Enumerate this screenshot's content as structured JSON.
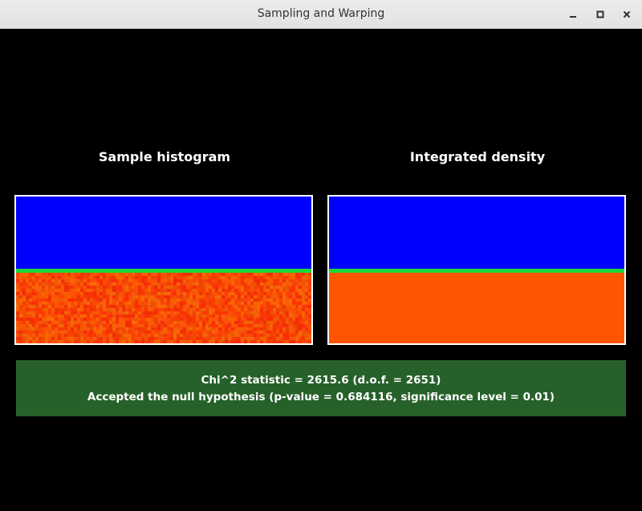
{
  "window": {
    "title": "Sampling and Warping",
    "controls": {
      "minimize_icon": "minimize-icon",
      "maximize_icon": "maximize-icon",
      "close_icon": "close-icon"
    }
  },
  "panels": {
    "left_title": "Sample histogram",
    "right_title": "Integrated density"
  },
  "colors": {
    "low_density": "#0000ff",
    "boundary": "#19d93a",
    "high_density": "#ff5500",
    "result_background": "#27612a"
  },
  "result": {
    "line1": "Chi^2 statistic = 2615.6 (d.o.f. = 2651)",
    "line2": "Accepted the null hypothesis (p-value = 0.684116, significance level = 0.01)"
  }
}
